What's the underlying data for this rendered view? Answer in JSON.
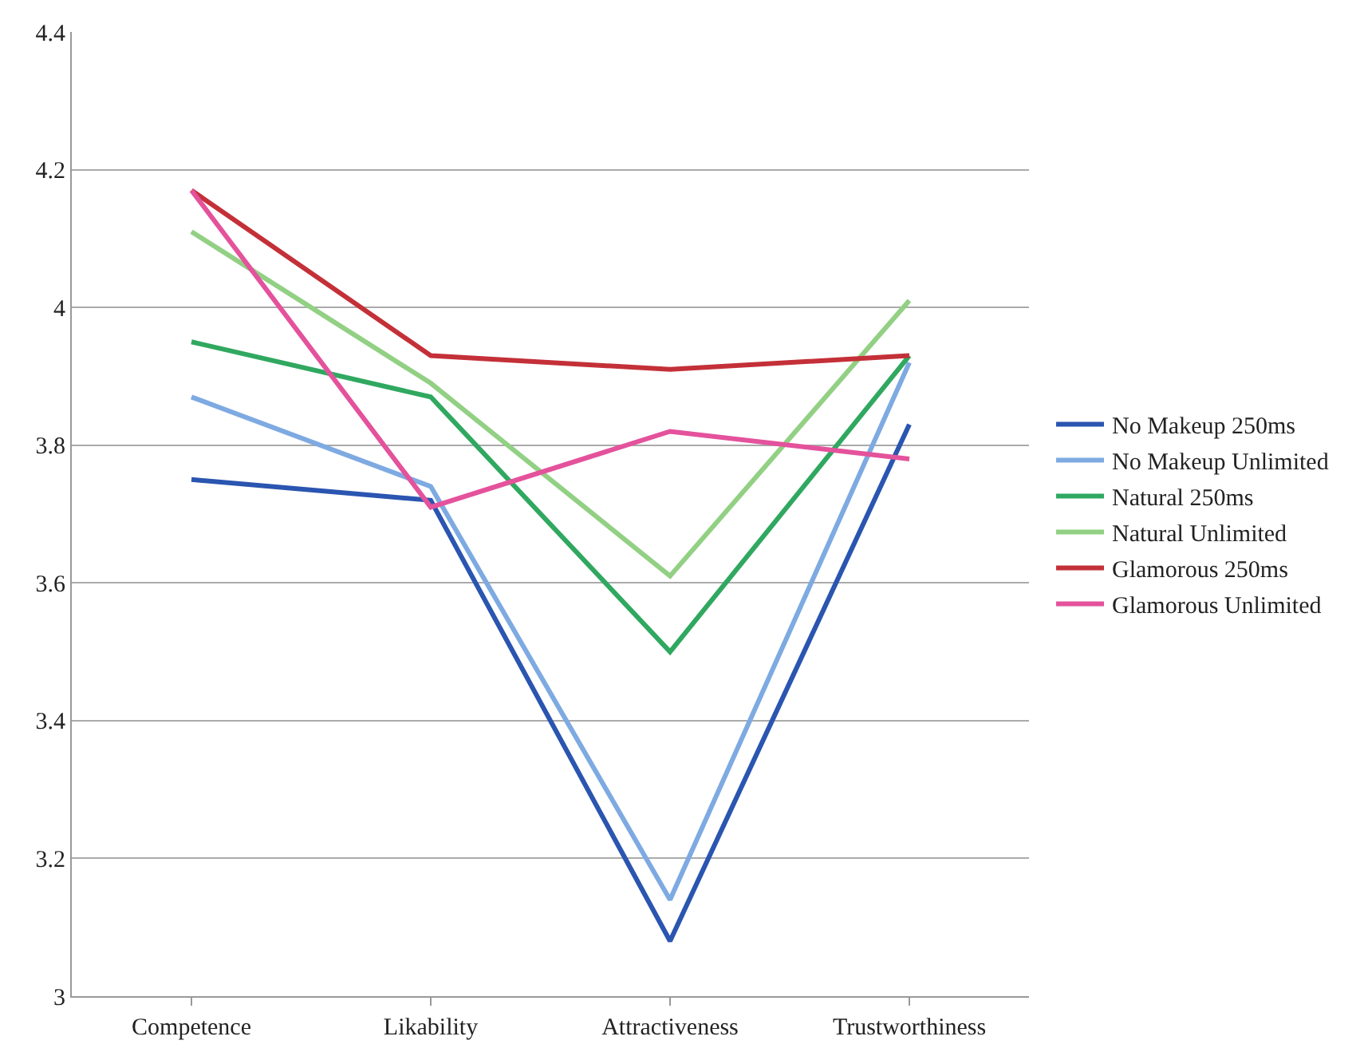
{
  "chart_data": {
    "type": "line",
    "categories": [
      "Competence",
      "Likability",
      "Attractiveness",
      "Trustworthiness"
    ],
    "series": [
      {
        "name": "No Makeup 250ms",
        "color": "#2a55b0",
        "values": [
          3.75,
          3.72,
          3.08,
          3.83
        ]
      },
      {
        "name": "No Makeup Unlimited",
        "color": "#7eaae2",
        "values": [
          3.87,
          3.74,
          3.14,
          3.92
        ]
      },
      {
        "name": "Natural 250ms",
        "color": "#30a860",
        "values": [
          3.95,
          3.87,
          3.5,
          3.93
        ]
      },
      {
        "name": "Natural Unlimited",
        "color": "#92d084",
        "values": [
          4.11,
          3.89,
          3.61,
          4.01
        ]
      },
      {
        "name": "Glamorous 250ms",
        "color": "#c43038",
        "values": [
          4.17,
          3.93,
          3.91,
          3.93
        ]
      },
      {
        "name": "Glamorous Unlimited",
        "color": "#e4529c",
        "values": [
          4.17,
          3.71,
          3.82,
          3.78
        ]
      }
    ],
    "ylim": [
      3,
      4.4
    ],
    "yticks": [
      3,
      3.2,
      3.4,
      3.6,
      3.8,
      {
        "value": 4,
        "label": "4"
      },
      4.2,
      4.4
    ],
    "grid": "y",
    "legend": "right",
    "marker": "none",
    "line_style": "solid"
  }
}
